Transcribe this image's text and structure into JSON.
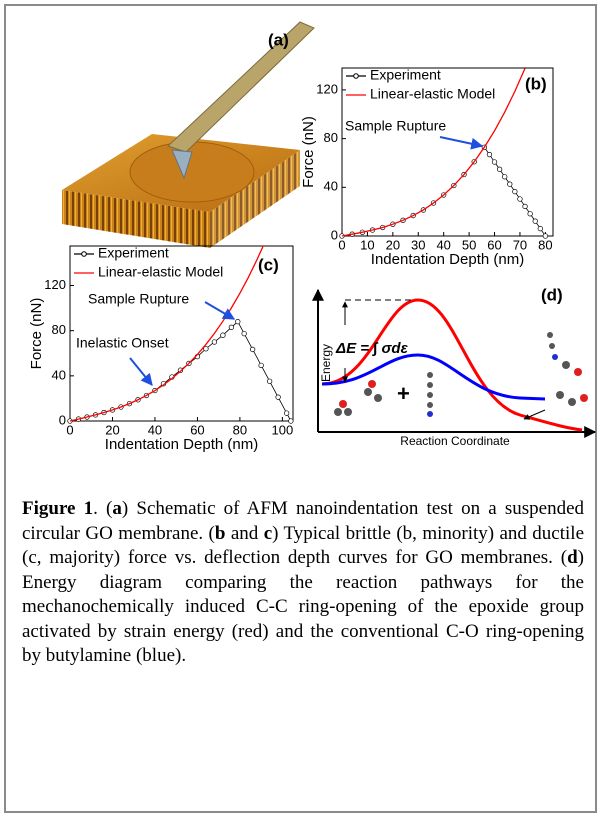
{
  "chart_data": [
    {
      "type": "line",
      "panel_label": "(b)",
      "xlabel": "Indentation Depth (nm)",
      "ylabel": "Force (nN)",
      "xlim": [
        0,
        83
      ],
      "ylim": [
        0,
        138
      ],
      "xticks": [
        0,
        10,
        20,
        30,
        40,
        50,
        60,
        70,
        80
      ],
      "yticks": [
        0,
        40,
        80,
        120
      ],
      "legend": "upper left",
      "annotations": [
        "Sample Rupture"
      ],
      "series": [
        {
          "name": "Experiment",
          "color": "#000000",
          "marker": "circle",
          "x": [
            0,
            4,
            8,
            12,
            16,
            20,
            24,
            28,
            32,
            36,
            40,
            44,
            48,
            52,
            56,
            58,
            60,
            62,
            64,
            66,
            68,
            70,
            72,
            74,
            76,
            78,
            80
          ],
          "values": [
            0,
            1.5,
            3.1,
            4.9,
            7.0,
            9.7,
            12.9,
            16.8,
            21.4,
            27.1,
            33.7,
            41.5,
            50.5,
            61.0,
            72.9,
            66.9,
            60.8,
            54.8,
            48.7,
            42.6,
            36.5,
            30.4,
            24.3,
            18.3,
            12.2,
            6.1,
            0
          ]
        },
        {
          "name": "Linear-elastic Model",
          "color": "#ff0000",
          "x": [
            0,
            4,
            8,
            12,
            16,
            20,
            24,
            28,
            32,
            36,
            40,
            44,
            48,
            52,
            56,
            60,
            64,
            68,
            72
          ],
          "values": [
            0,
            1.5,
            3.1,
            4.9,
            7.0,
            9.7,
            12.9,
            16.8,
            21.4,
            27.1,
            33.7,
            41.5,
            50.5,
            61.0,
            72.9,
            86.4,
            101.7,
            118.8,
            137.8
          ]
        }
      ]
    },
    {
      "type": "line",
      "panel_label": "(c)",
      "xlabel": "Indentation Depth (nm)",
      "ylabel": "Force (nN)",
      "xlim": [
        0,
        105
      ],
      "ylim": [
        0,
        155
      ],
      "xticks": [
        0,
        20,
        40,
        60,
        80,
        100
      ],
      "yticks": [
        0,
        40,
        80,
        120
      ],
      "legend": "upper left",
      "annotations": [
        "Sample Rupture",
        "Inelastic Onset"
      ],
      "series": [
        {
          "name": "Experiment",
          "color": "#000000",
          "marker": "circle",
          "x": [
            0,
            4,
            8,
            12,
            16,
            20,
            24,
            28,
            32,
            36,
            40,
            44,
            48,
            52,
            56,
            60,
            64,
            68,
            72,
            76,
            79,
            82,
            86,
            90,
            94,
            98,
            102,
            104
          ],
          "values": [
            0,
            1.7,
            3.5,
            5.4,
            7.5,
            9.8,
            12.4,
            15.4,
            18.8,
            22.6,
            27.0,
            33,
            39,
            45,
            51,
            57,
            64,
            70,
            76,
            83,
            88,
            77.4,
            63.4,
            49.3,
            35.2,
            21.1,
            7.0,
            0
          ]
        },
        {
          "name": "Linear-elastic Model",
          "color": "#ff0000",
          "x": [
            0,
            4,
            8,
            12,
            16,
            20,
            24,
            28,
            32,
            36,
            40,
            44,
            48,
            52,
            56,
            60,
            64,
            68,
            72,
            76,
            80,
            84,
            88,
            91
          ],
          "values": [
            0,
            1.7,
            3.5,
            5.4,
            7.5,
            9.8,
            12.4,
            15.4,
            18.8,
            22.6,
            27.0,
            32.0,
            37.6,
            44.0,
            51.1,
            59.0,
            67.8,
            77.6,
            88.4,
            100.2,
            113.2,
            127.3,
            142.7,
            155.1
          ]
        }
      ]
    }
  ],
  "panel_a": {
    "label": "(a)"
  },
  "panel_d": {
    "label": "(d)",
    "ylabel": "Energy",
    "xlabel": "Reaction Coordinate",
    "equation": "ΔE = ∫ σdε"
  },
  "caption": [
    {
      "text": "Figure 1",
      "bold": true
    },
    {
      "text": ". (",
      "bold": false
    },
    {
      "text": "a",
      "bold": true
    },
    {
      "text": ") Schematic of AFM nanoindentation test on a suspended circular GO membrane. (",
      "bold": false
    },
    {
      "text": "b",
      "bold": true
    },
    {
      "text": " and ",
      "bold": false
    },
    {
      "text": "c",
      "bold": true
    },
    {
      "text": ") Typical brittle (b, minority) and ductile (c, majority) force vs. deflection depth curves for GO membranes. (",
      "bold": false
    },
    {
      "text": "d",
      "bold": true
    },
    {
      "text": ") Energy diagram comparing the reaction pathways for the mechanochemically induced C-C ring-opening of the epoxide group activated by strain energy (red) and the conventional C-O ring-opening by butylamine (blue).",
      "bold": false
    }
  ]
}
